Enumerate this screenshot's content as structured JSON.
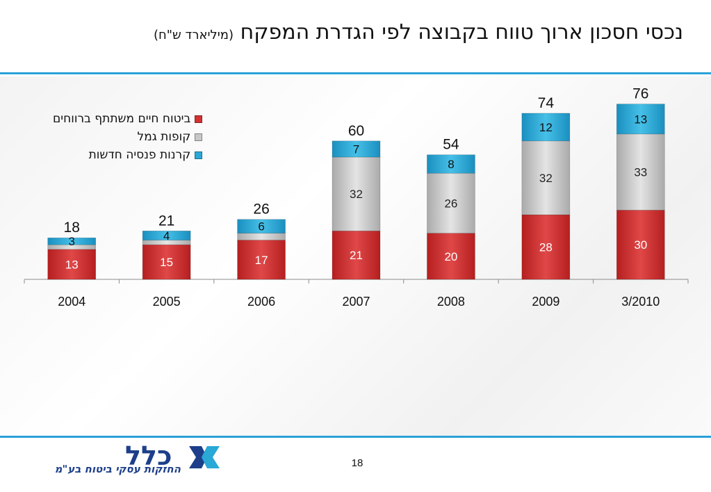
{
  "slide": {
    "title": "נכסי חסכון ארוך טווח בקבוצה לפי הגדרת המפקח",
    "title_unit": "(מיליארד ש\"ח)",
    "page_number": "18"
  },
  "logo": {
    "wordmark": "כלל",
    "tagline": "החזקות עסקי ביטוח בע\"מ"
  },
  "chart_data": {
    "type": "bar",
    "stacked": true,
    "title": "",
    "xlabel": "",
    "ylabel": "",
    "categories": [
      "2004",
      "2005",
      "2006",
      "2007",
      "2008",
      "2009",
      "3/2010"
    ],
    "series": [
      {
        "name": "ביטוח חיים משתתף ברווחים",
        "color": "#d23232",
        "values": [
          13,
          15,
          17,
          21,
          20,
          28,
          30
        ]
      },
      {
        "name": "קופות גמל",
        "color": "#c8c8c8",
        "values": [
          2,
          2,
          3,
          32,
          26,
          32,
          33
        ]
      },
      {
        "name": "קרנות פנסיה חדשות",
        "color": "#2aa8d6",
        "values": [
          3,
          4,
          6,
          7,
          8,
          12,
          13
        ]
      }
    ],
    "segment_labels": [
      [
        "13",
        "15",
        "17",
        "21",
        "20",
        "28",
        "30"
      ],
      [
        "",
        "",
        "",
        "32",
        "26",
        "32",
        "33"
      ],
      [
        "3",
        "4",
        "6",
        "7",
        "8",
        "12",
        "13"
      ]
    ],
    "totals": [
      "18",
      "21",
      "26",
      "60",
      "54",
      "74",
      "76"
    ],
    "ylim": [
      0,
      80
    ],
    "grid": false,
    "legend_position": "top-left"
  }
}
